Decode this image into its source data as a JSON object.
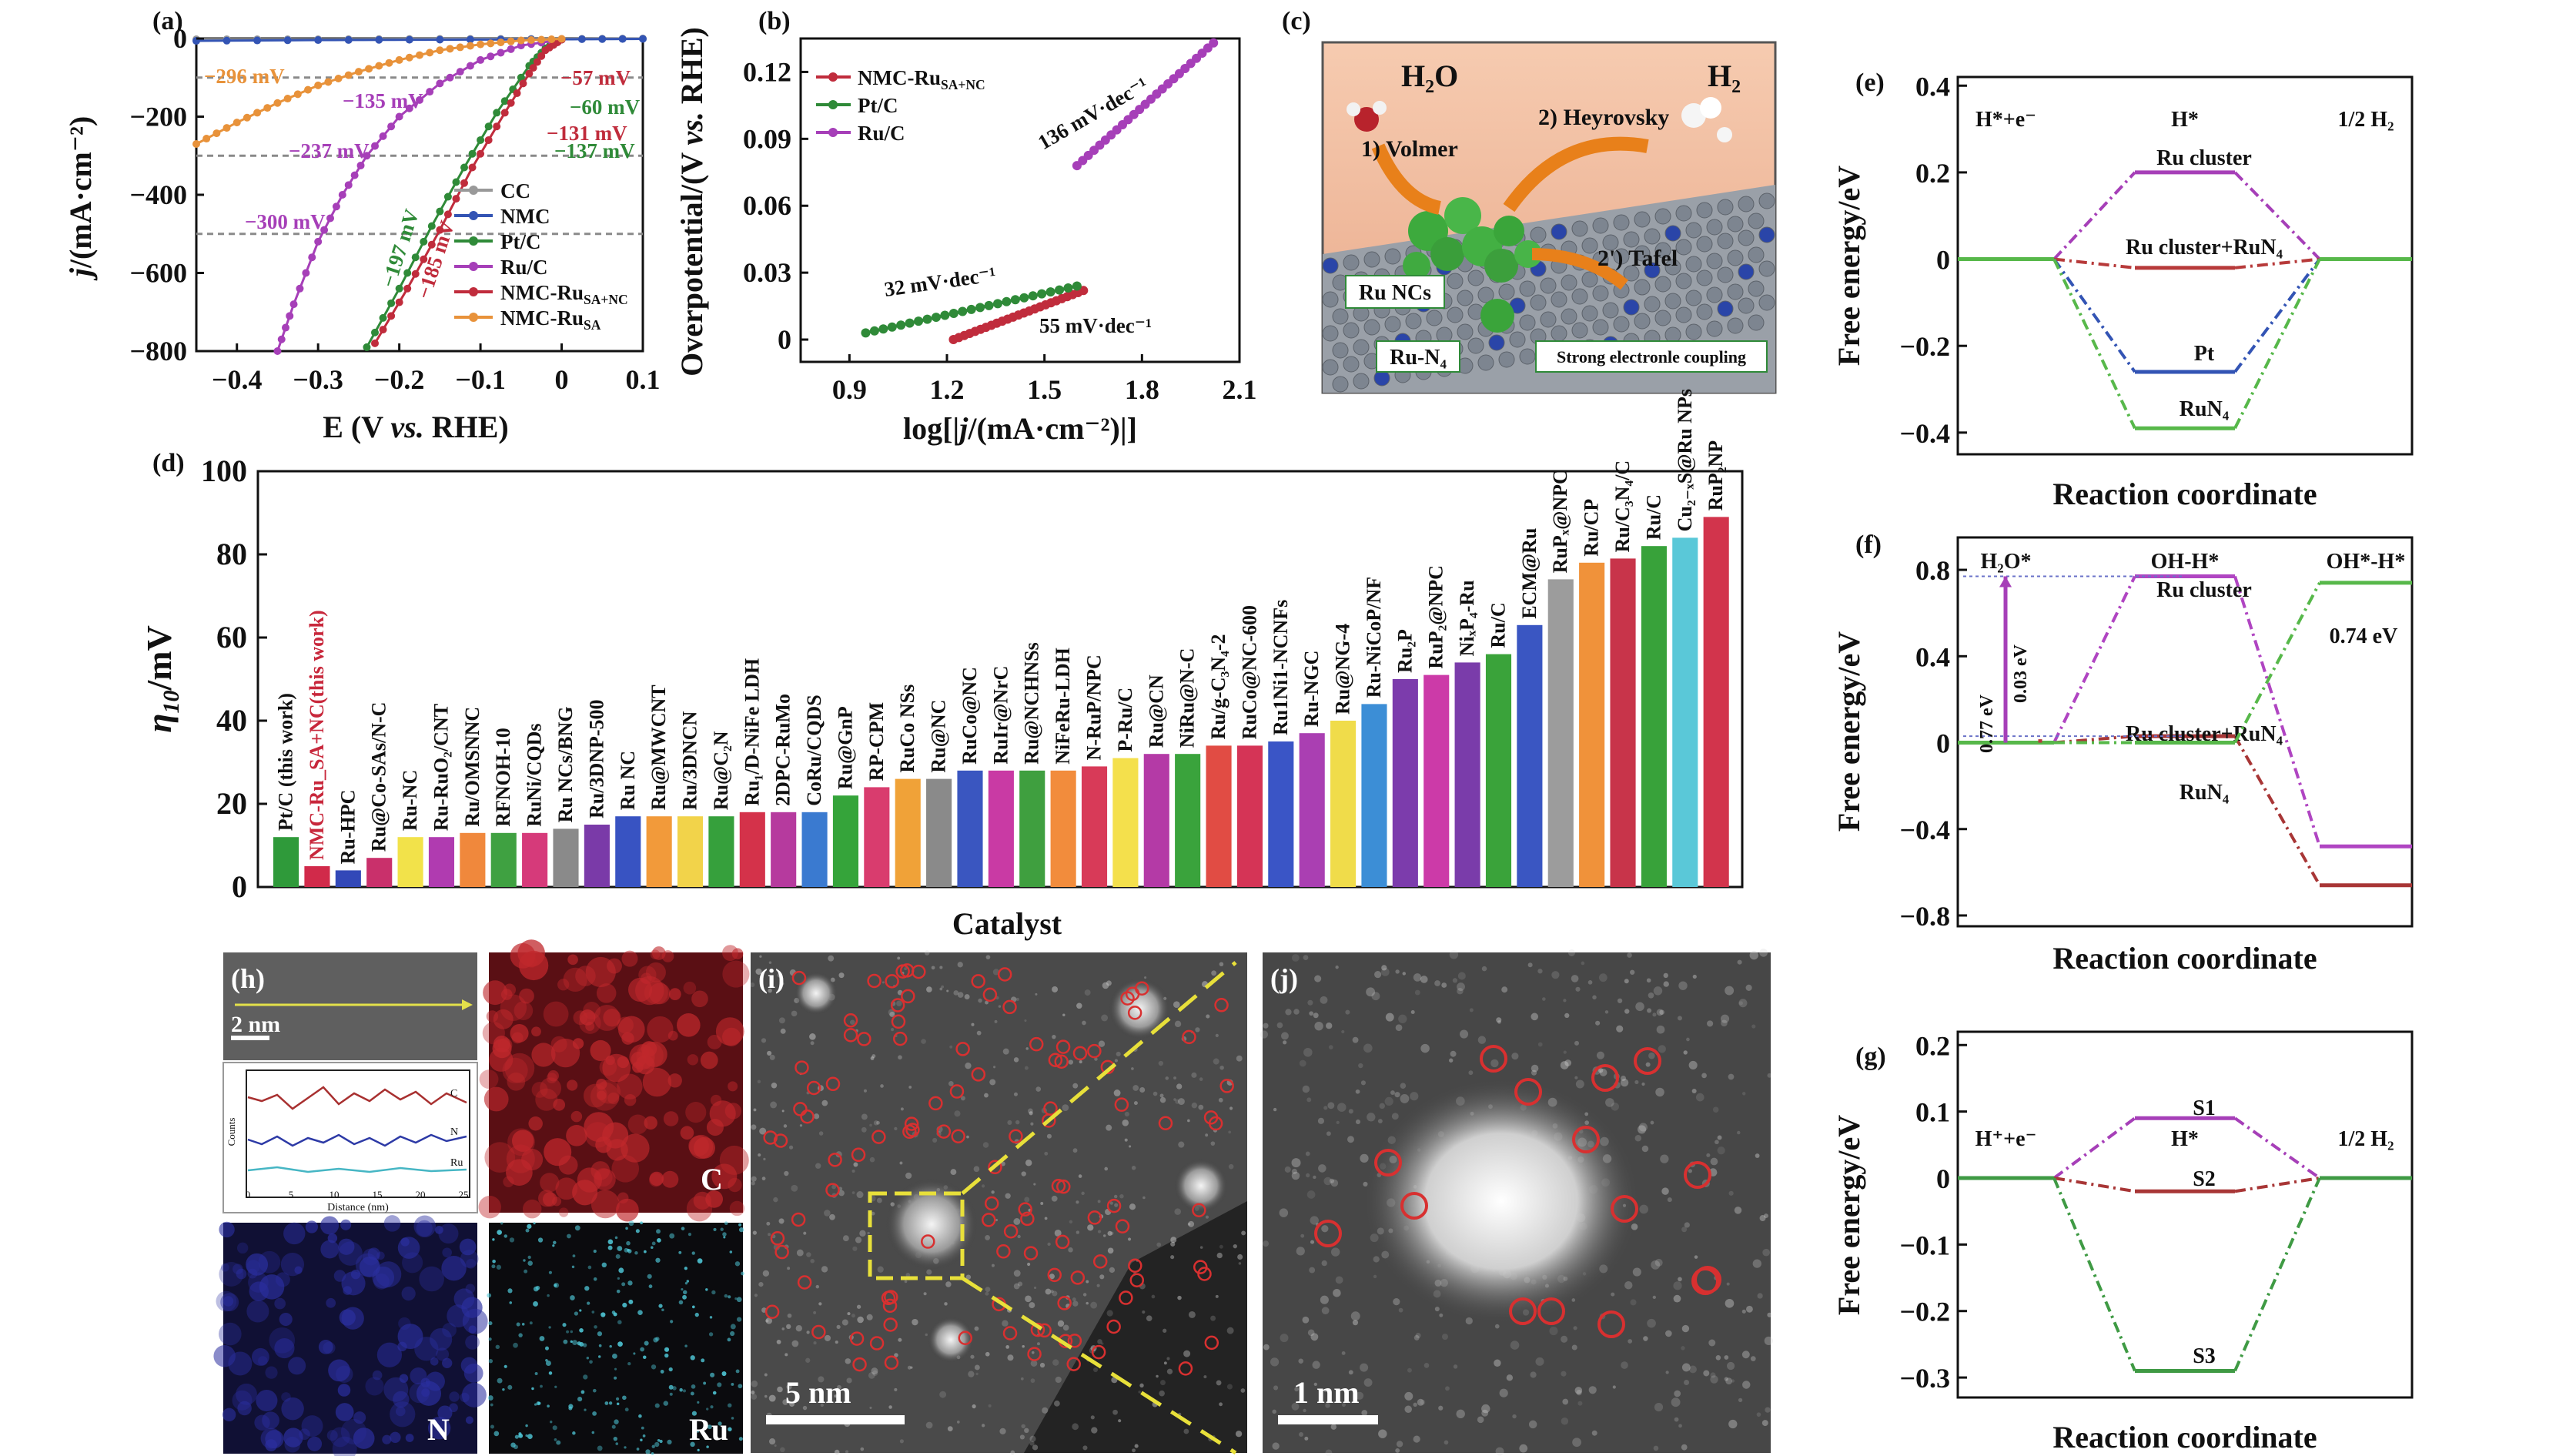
{
  "panel_labels": {
    "a": "(a)",
    "b": "(b)",
    "c": "(c)",
    "d": "(d)",
    "e": "(e)",
    "f": "(f)",
    "g": "(g)",
    "h": "(h)",
    "i": "(i)",
    "j": "(j)"
  },
  "colors": {
    "CC": "#999999",
    "NMC": "#3354b4",
    "PtC": "#2f8a38",
    "RuC": "#a63fb8",
    "NMC_RuSANC": "#c02c3c",
    "NMC_RuSA": "#e8923a",
    "gray_dash": "#8a8a8a"
  },
  "chart_data": [
    {
      "id": "a",
      "type": "line",
      "xlabel": "E (V vs. RHE)",
      "ylabel": "j/(mA·cm⁻²)",
      "xlim": [
        -0.45,
        0.1
      ],
      "ylim": [
        -800,
        0
      ],
      "xticks": [
        "−0.4",
        "−0.3",
        "−0.2",
        "−0.1",
        "0",
        "0.1"
      ],
      "yticks": [
        "−800",
        "−600",
        "−400",
        "−200",
        "0"
      ],
      "reference_lines": [
        -100,
        -300,
        -500
      ],
      "legend": [
        "CC",
        "NMC",
        "Pt/C",
        "Ru/C",
        "NMC-Ru_SA+NC",
        "NMC-Ru_SA"
      ],
      "annotations": [
        "−296 mV",
        "−57 mV",
        "−135 mV",
        "−60 mV",
        "−131 mV",
        "−237 mV",
        "−137 mV",
        "−300 mV",
        "−197 mV",
        "−185 mV"
      ],
      "series": [
        {
          "name": "CC",
          "x": [
            -0.45,
            -0.3,
            -0.15,
            0.0,
            0.1
          ],
          "y": [
            -2,
            -2,
            -1,
            -1,
            0
          ]
        },
        {
          "name": "NMC",
          "x": [
            -0.45,
            -0.3,
            -0.15,
            0.0,
            0.1
          ],
          "y": [
            -6,
            -4,
            -3,
            -2,
            -1
          ]
        },
        {
          "name": "Pt/C",
          "x": [
            -0.24,
            -0.2,
            -0.16,
            -0.12,
            -0.08,
            -0.04,
            -0.02,
            0.0
          ],
          "y": [
            -790,
            -640,
            -480,
            -330,
            -190,
            -70,
            -25,
            -3
          ]
        },
        {
          "name": "Ru/C",
          "x": [
            -0.35,
            -0.33,
            -0.3,
            -0.27,
            -0.24,
            -0.2,
            -0.15,
            -0.1,
            -0.05,
            0.0
          ],
          "y": [
            -800,
            -680,
            -520,
            -400,
            -300,
            -200,
            -115,
            -55,
            -18,
            -3
          ]
        },
        {
          "name": "NMC-Ru_SA+NC",
          "x": [
            -0.23,
            -0.19,
            -0.15,
            -0.11,
            -0.07,
            -0.04,
            -0.02,
            0.0
          ],
          "y": [
            -780,
            -640,
            -490,
            -330,
            -190,
            -90,
            -30,
            -3
          ]
        },
        {
          "name": "NMC-Ru_SA",
          "x": [
            -0.45,
            -0.4,
            -0.35,
            -0.3,
            -0.25,
            -0.2,
            -0.15,
            -0.1,
            -0.05,
            0.0
          ],
          "y": [
            -270,
            -215,
            -165,
            -120,
            -85,
            -55,
            -30,
            -15,
            -5,
            -1
          ]
        }
      ]
    },
    {
      "id": "b",
      "type": "line",
      "xlabel": "log[|j/(mA·cm⁻²)|]",
      "ylabel": "Overpotential/(V vs. RHE)",
      "xlim": [
        0.75,
        2.1
      ],
      "ylim": [
        -0.01,
        0.135
      ],
      "xticks": [
        "0.9",
        "1.2",
        "1.5",
        "1.8",
        "2.1"
      ],
      "yticks": [
        "0",
        "0.03",
        "0.06",
        "0.09",
        "0.12"
      ],
      "legend": [
        "NMC-Ru_SA+NC",
        "Pt/C",
        "Ru/C"
      ],
      "annotations": [
        "136 mV·dec⁻¹",
        "32 mV·dec⁻¹",
        "55 mV·dec⁻¹"
      ],
      "series": [
        {
          "name": "NMC-Ru_SA+NC",
          "x": [
            1.22,
            1.62
          ],
          "y": [
            0.0,
            0.022
          ]
        },
        {
          "name": "Pt/C",
          "x": [
            0.95,
            1.6
          ],
          "y": [
            0.003,
            0.024
          ]
        },
        {
          "name": "Ru/C",
          "x": [
            1.6,
            2.02
          ],
          "y": [
            0.078,
            0.133
          ]
        }
      ]
    },
    {
      "id": "d",
      "type": "bar",
      "xlabel": "Catalyst",
      "ylabel": "η10/mV",
      "ylim": [
        0,
        100
      ],
      "yticks": [
        "0",
        "20",
        "40",
        "60",
        "80",
        "100"
      ],
      "categories": [
        "Pt/C (this work)",
        "NMC-Ru_SA+NC(this work)",
        "Ru-HPC",
        "Ru@Co-SAs/N-C",
        "Ru-NC",
        "Ru-RuO₂/CNT",
        "Ru/OMSNNC",
        "RFNOH-10",
        "RuNi/CQDs",
        "Ru NCs/BNG",
        "Ru/3DNP-500",
        "Ru NC",
        "Ru@MWCNT",
        "Ru/3DNCN",
        "Ru@C₂N",
        "Ru₁/D-NiFe LDH",
        "2DPC-RuMo",
        "CoRu/CQDS",
        "Ru@GnP",
        "RP-CPM",
        "RuCo NSs",
        "Ru@NC",
        "RuCo@NC",
        "RuIr@NrC",
        "Ru@NCHNSs",
        "NiFeRu-LDH",
        "N-RuP/NPC",
        "P-Ru/C",
        "Ru@CN",
        "NiRu@N-C",
        "Ru/g-C₃N₄-2",
        "RuCo@NC-600",
        "Ru1Ni1-NCNFs",
        "Ru-NGC",
        "Ru@NG-4",
        "Ru-NiCoP/NF",
        "Ru₂P",
        "RuP₂@NPC",
        "NiₓP₄-Ru",
        "Ru/C",
        "ECM@Ru",
        "RuPₓ@NPC",
        "Ru/CP",
        "Ru/C₃N₄/C",
        "Ru/C",
        "Cu₂₋ₓS@Ru NPs",
        "RuP₂NP"
      ],
      "values": [
        12,
        5,
        4,
        7,
        12,
        12,
        13,
        13,
        13,
        14,
        15,
        17,
        17,
        17,
        17,
        18,
        18,
        18,
        22,
        24,
        26,
        26,
        28,
        28,
        28,
        28,
        29,
        31,
        32,
        32,
        34,
        34,
        35,
        37,
        40,
        44,
        50,
        51,
        54,
        56,
        63,
        74,
        78,
        79,
        82,
        84,
        89
      ],
      "bar_colors": [
        "#2f9a3a",
        "#d12a4a",
        "#3248b8",
        "#c9306b",
        "#f2e24a",
        "#b03bb0",
        "#f0883c",
        "#3fa141",
        "#d63a7a",
        "#8a8a8a",
        "#7a3aa8",
        "#3853c2",
        "#f29a3a",
        "#f2d34a",
        "#36a03c",
        "#d4324a",
        "#b63a9e",
        "#3a7ad0",
        "#35a43a",
        "#d93c6e",
        "#f0a238",
        "#8a8a8a",
        "#3a56c0",
        "#c93aa4",
        "#3f9f3f",
        "#f28c3c",
        "#d83a58",
        "#f4e04c",
        "#b43aa6",
        "#3aa33c",
        "#e14c44",
        "#d53456",
        "#3a55c6",
        "#aa3fb2",
        "#f0dc4a",
        "#3c8ed6",
        "#7c3cac",
        "#cc3aa8",
        "#7a3caa",
        "#3aa33a",
        "#3a56c2",
        "#9c9c9c",
        "#f0923a",
        "#c8344a",
        "#38a23a",
        "#5ac8d8",
        "#d2344c"
      ]
    },
    {
      "id": "e",
      "type": "line",
      "xlabel": "Reaction coordinate",
      "ylabel": "Free energy/eV",
      "ylim": [
        -0.45,
        0.42
      ],
      "yticks": [
        "−0.4",
        "−0.2",
        "0",
        "0.2",
        "0.4"
      ],
      "states": [
        "H*+e⁻",
        "H*",
        "1/2 H₂"
      ],
      "series": [
        {
          "name": "Ru cluster",
          "values": [
            0,
            0.2,
            0
          ]
        },
        {
          "name": "Ru cluster+RuN₄",
          "values": [
            0,
            -0.02,
            0
          ]
        },
        {
          "name": "Pt",
          "values": [
            0,
            -0.26,
            0
          ]
        },
        {
          "name": "RuN₄",
          "values": [
            0,
            -0.39,
            0
          ]
        }
      ]
    },
    {
      "id": "f",
      "type": "line",
      "xlabel": "Reaction coordinate",
      "ylabel": "Free energy/eV",
      "ylim": [
        -0.85,
        0.95
      ],
      "yticks": [
        "−0.8",
        "−0.4",
        "0",
        "0.4",
        "0.8"
      ],
      "states": [
        "H₂O*",
        "OH-H*",
        "OH*-H*"
      ],
      "annotations": [
        "0.77 eV",
        "0.03 eV",
        "0.74 eV"
      ],
      "series": [
        {
          "name": "Ru cluster",
          "values": [
            0,
            0.77,
            -0.48
          ]
        },
        {
          "name": "Ru cluster+RuN₄",
          "values": [
            0,
            0.03,
            -0.66
          ]
        },
        {
          "name": "RuN₄",
          "values": [
            0,
            0.0,
            0.74
          ]
        }
      ]
    },
    {
      "id": "g",
      "type": "line",
      "xlabel": "Reaction coordinate",
      "ylabel": "Free energy/eV",
      "ylim": [
        -0.33,
        0.22
      ],
      "yticks": [
        "−0.3",
        "−0.2",
        "−0.1",
        "0",
        "0.1",
        "0.2"
      ],
      "states": [
        "H⁺+e⁻",
        "H*",
        "1/2 H₂"
      ],
      "series": [
        {
          "name": "S1",
          "values": [
            0,
            0.09,
            0
          ]
        },
        {
          "name": "S2",
          "values": [
            0,
            -0.02,
            0
          ]
        },
        {
          "name": "S3",
          "values": [
            0,
            -0.29,
            0
          ]
        }
      ]
    }
  ],
  "panel_c": {
    "h2o": "H₂O",
    "h2": "H₂",
    "volmer": "1) Volmer",
    "heyrovsky": "2) Heyrovsky",
    "tafel": "2') Tafel",
    "ru_ncs": "Ru NCs",
    "ru_n4": "Ru-N₄",
    "coupling": "Strong electronle coupling"
  },
  "panel_h": {
    "scale": "2 nm",
    "C": "C",
    "N": "N",
    "Ru": "Ru",
    "xaxis": "Distance (nm)",
    "yaxis": "Counts",
    "traces": [
      "C",
      "N",
      "Ru"
    ],
    "xticks": [
      "0",
      "5",
      "10",
      "15",
      "20",
      "25"
    ]
  },
  "panel_i": {
    "scale": "5 nm"
  },
  "panel_j": {
    "scale": "1 nm"
  }
}
